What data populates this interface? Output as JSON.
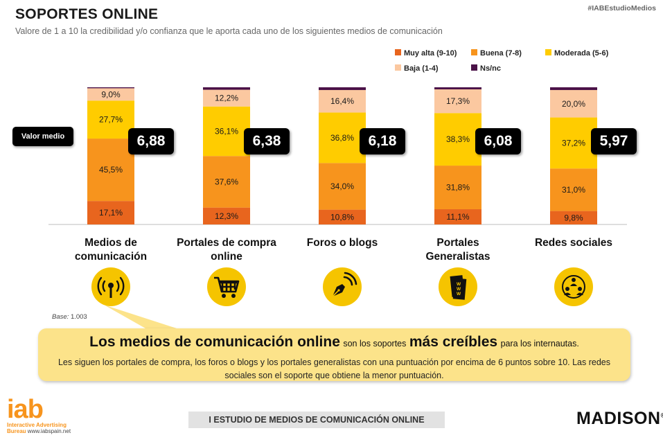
{
  "header": {
    "title": "SOPORTES ONLINE",
    "subtitle": "Valore de 1 a 10 la credibilidad y/o confianza que le aporta cada uno de los siguientes medios de comunicación",
    "hashtag": "#IABEstudioMedios"
  },
  "chart_data": {
    "type": "bar",
    "stacked": true,
    "title": "SOPORTES ONLINE",
    "categories": [
      "Medios de comunicación",
      "Portales de compra online",
      "Foros o blogs",
      "Portales Generalistas",
      "Redes sociales"
    ],
    "series": [
      {
        "name": "Muy alta (9-10)",
        "color": "#E8651E",
        "values": [
          17.1,
          12.3,
          10.8,
          11.1,
          9.8
        ],
        "labels": [
          "17,1%",
          "12,3%",
          "10,8%",
          "11,1%",
          "9,8%"
        ]
      },
      {
        "name": "Buena (7-8)",
        "color": "#F7941D",
        "values": [
          45.5,
          37.6,
          34.0,
          31.8,
          31.0
        ],
        "labels": [
          "45,5%",
          "37,6%",
          "34,0%",
          "31,8%",
          "31,0%"
        ]
      },
      {
        "name": "Moderada (5-6)",
        "color": "#FFCC00",
        "values": [
          27.7,
          36.1,
          36.8,
          38.3,
          37.2
        ],
        "labels": [
          "27,7%",
          "36,1%",
          "36,8%",
          "38,3%",
          "37,2%"
        ]
      },
      {
        "name": "Baja (1-4)",
        "color": "#FBC8A0",
        "values": [
          9.0,
          12.2,
          16.4,
          17.3,
          20.0
        ],
        "labels": [
          "9,0%",
          "12,2%",
          "16,4%",
          "17,3%",
          "20,0%"
        ]
      },
      {
        "name": "Ns/nc",
        "color": "#4B1248",
        "values": [
          0.7,
          1.8,
          2.0,
          1.5,
          2.0
        ],
        "labels": [
          "",
          "",
          "",
          "",
          ""
        ]
      }
    ],
    "mean_label": "Valor medio",
    "means": [
      "6,88",
      "6,38",
      "6,18",
      "6,08",
      "5,97"
    ],
    "ylim": [
      0,
      100
    ],
    "legend_position": "top-right",
    "grid": false
  },
  "categories_display": [
    [
      "Medios de",
      "comunicación"
    ],
    [
      "Portales de compra",
      "online"
    ],
    [
      "Foros o blogs",
      ""
    ],
    [
      "Portales",
      "Generalistas"
    ],
    [
      "Redes sociales",
      ""
    ]
  ],
  "icons": [
    "broadcast-icon",
    "shopping-cart-icon",
    "pen-nib-icon",
    "web-pages-icon",
    "social-network-icon"
  ],
  "base": {
    "label": "Base:",
    "value": "1.003"
  },
  "callout": {
    "big1": "Los medios de comunicación online",
    "small1": "son los soportes",
    "big2": "más creíbles",
    "small2": "para los internautas.",
    "body": "Les siguen los portales de compra, los foros o blogs y los portales generalistas con una puntuación por encima de 6 puntos sobre 10. Las redes sociales son el soporte que obtiene la menor puntuación."
  },
  "footer": {
    "study": "I ESTUDIO DE MEDIOS DE COMUNICACIÓN ONLINE",
    "iab_logo": "iab",
    "iab_sub1": "Interactive Advertising",
    "iab_sub2": "Bureau",
    "iab_url": "www.iabspain.net",
    "madison": "MADISON",
    "madison_mark": "®"
  },
  "colors": {
    "accent_yellow": "#F5C400",
    "callout_bg": "#FCE38A",
    "iab_orange": "#F7941D"
  }
}
